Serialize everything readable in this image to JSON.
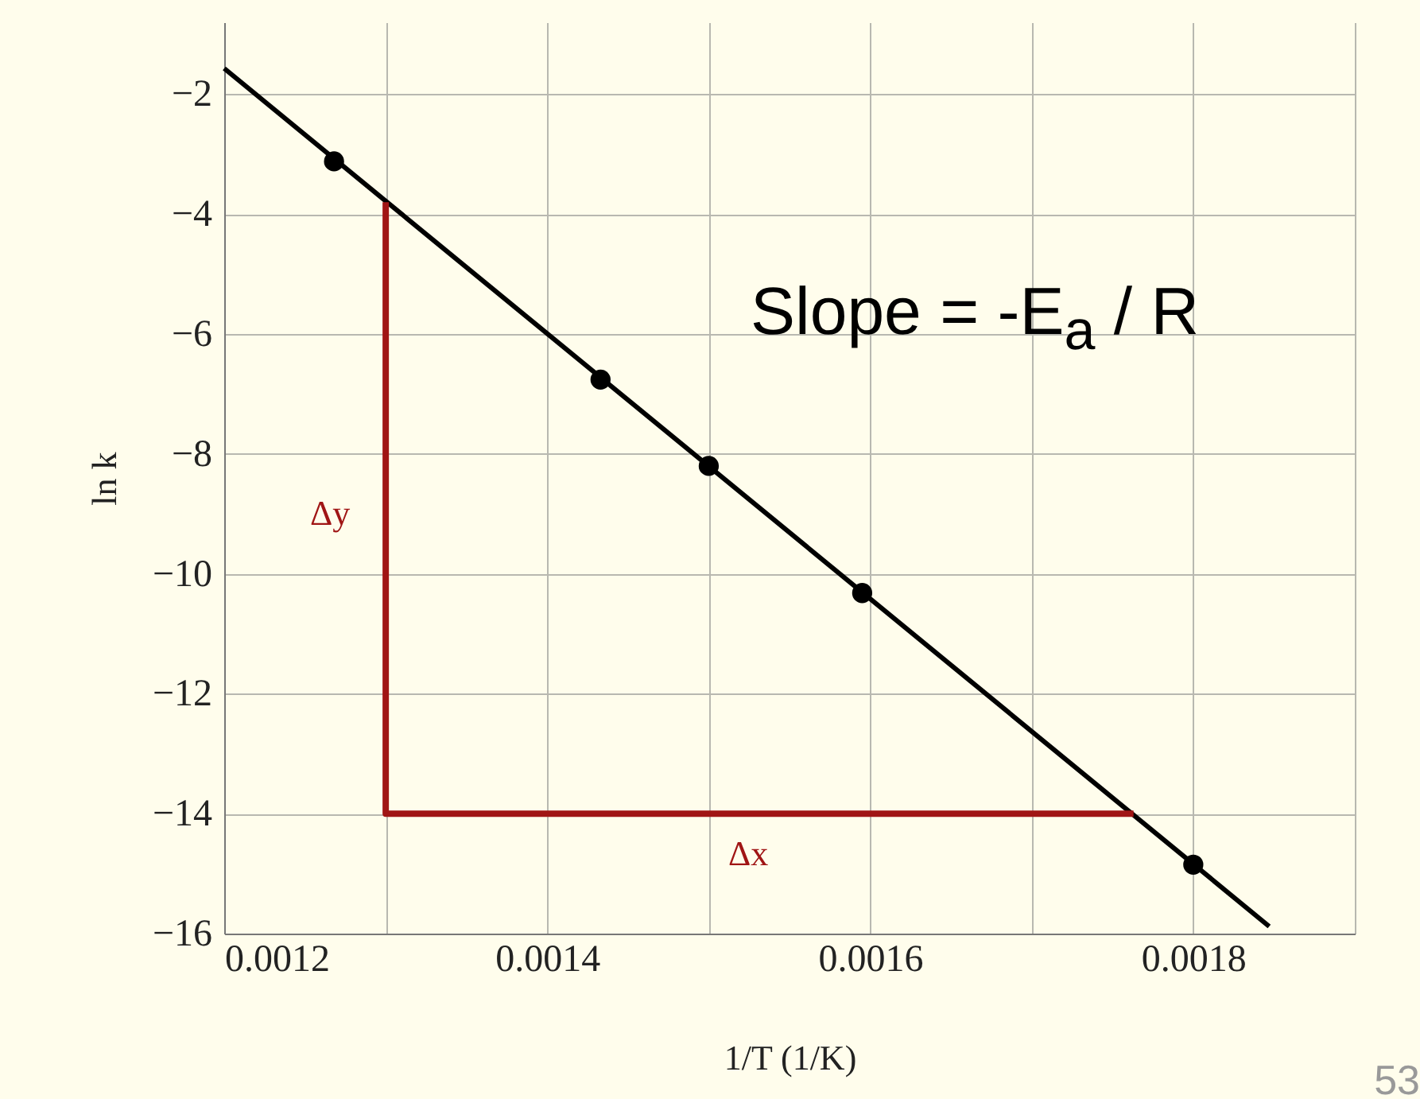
{
  "chart_data": {
    "type": "scatter",
    "xlabel": "1/T  (1/K)",
    "ylabel": "ln k",
    "xlim": [
      0.0012,
      0.0019
    ],
    "ylim": [
      -16,
      -0.8
    ],
    "xticks": [
      0.0012,
      {
        "value": 0.0013,
        "label": null
      },
      0.0014,
      {
        "value": 0.0015,
        "label": null
      },
      0.0016,
      {
        "value": 0.0017,
        "label": null
      },
      0.0018,
      {
        "value": 0.0019,
        "label": null
      }
    ],
    "yticks": [
      -16,
      -14,
      -12,
      -10,
      -8,
      -6,
      -4,
      -2
    ],
    "grid": true,
    "series": [
      {
        "marker": "circle",
        "color": "#000000",
        "x": [
          0.001268,
          0.001433,
          0.0015,
          0.001595,
          0.0018
        ],
        "values": [
          -3.12,
          -6.76,
          -8.2,
          -10.32,
          -14.85
        ]
      },
      {
        "type": "line",
        "marker": "none",
        "color": "#000000",
        "x": [
          0.0012,
          0.001847
        ],
        "values": [
          -1.57,
          -15.88
        ]
      },
      {
        "type": "line",
        "marker": "none",
        "color": "#a01515",
        "x": [
          0.0013,
          0.0013,
          0.001763
        ],
        "values": [
          -3.8,
          -14,
          -14
        ]
      }
    ],
    "annotations": [
      "Δy",
      "Δx",
      "Slope = -E$_{a}$ / R",
      "53"
    ]
  }
}
